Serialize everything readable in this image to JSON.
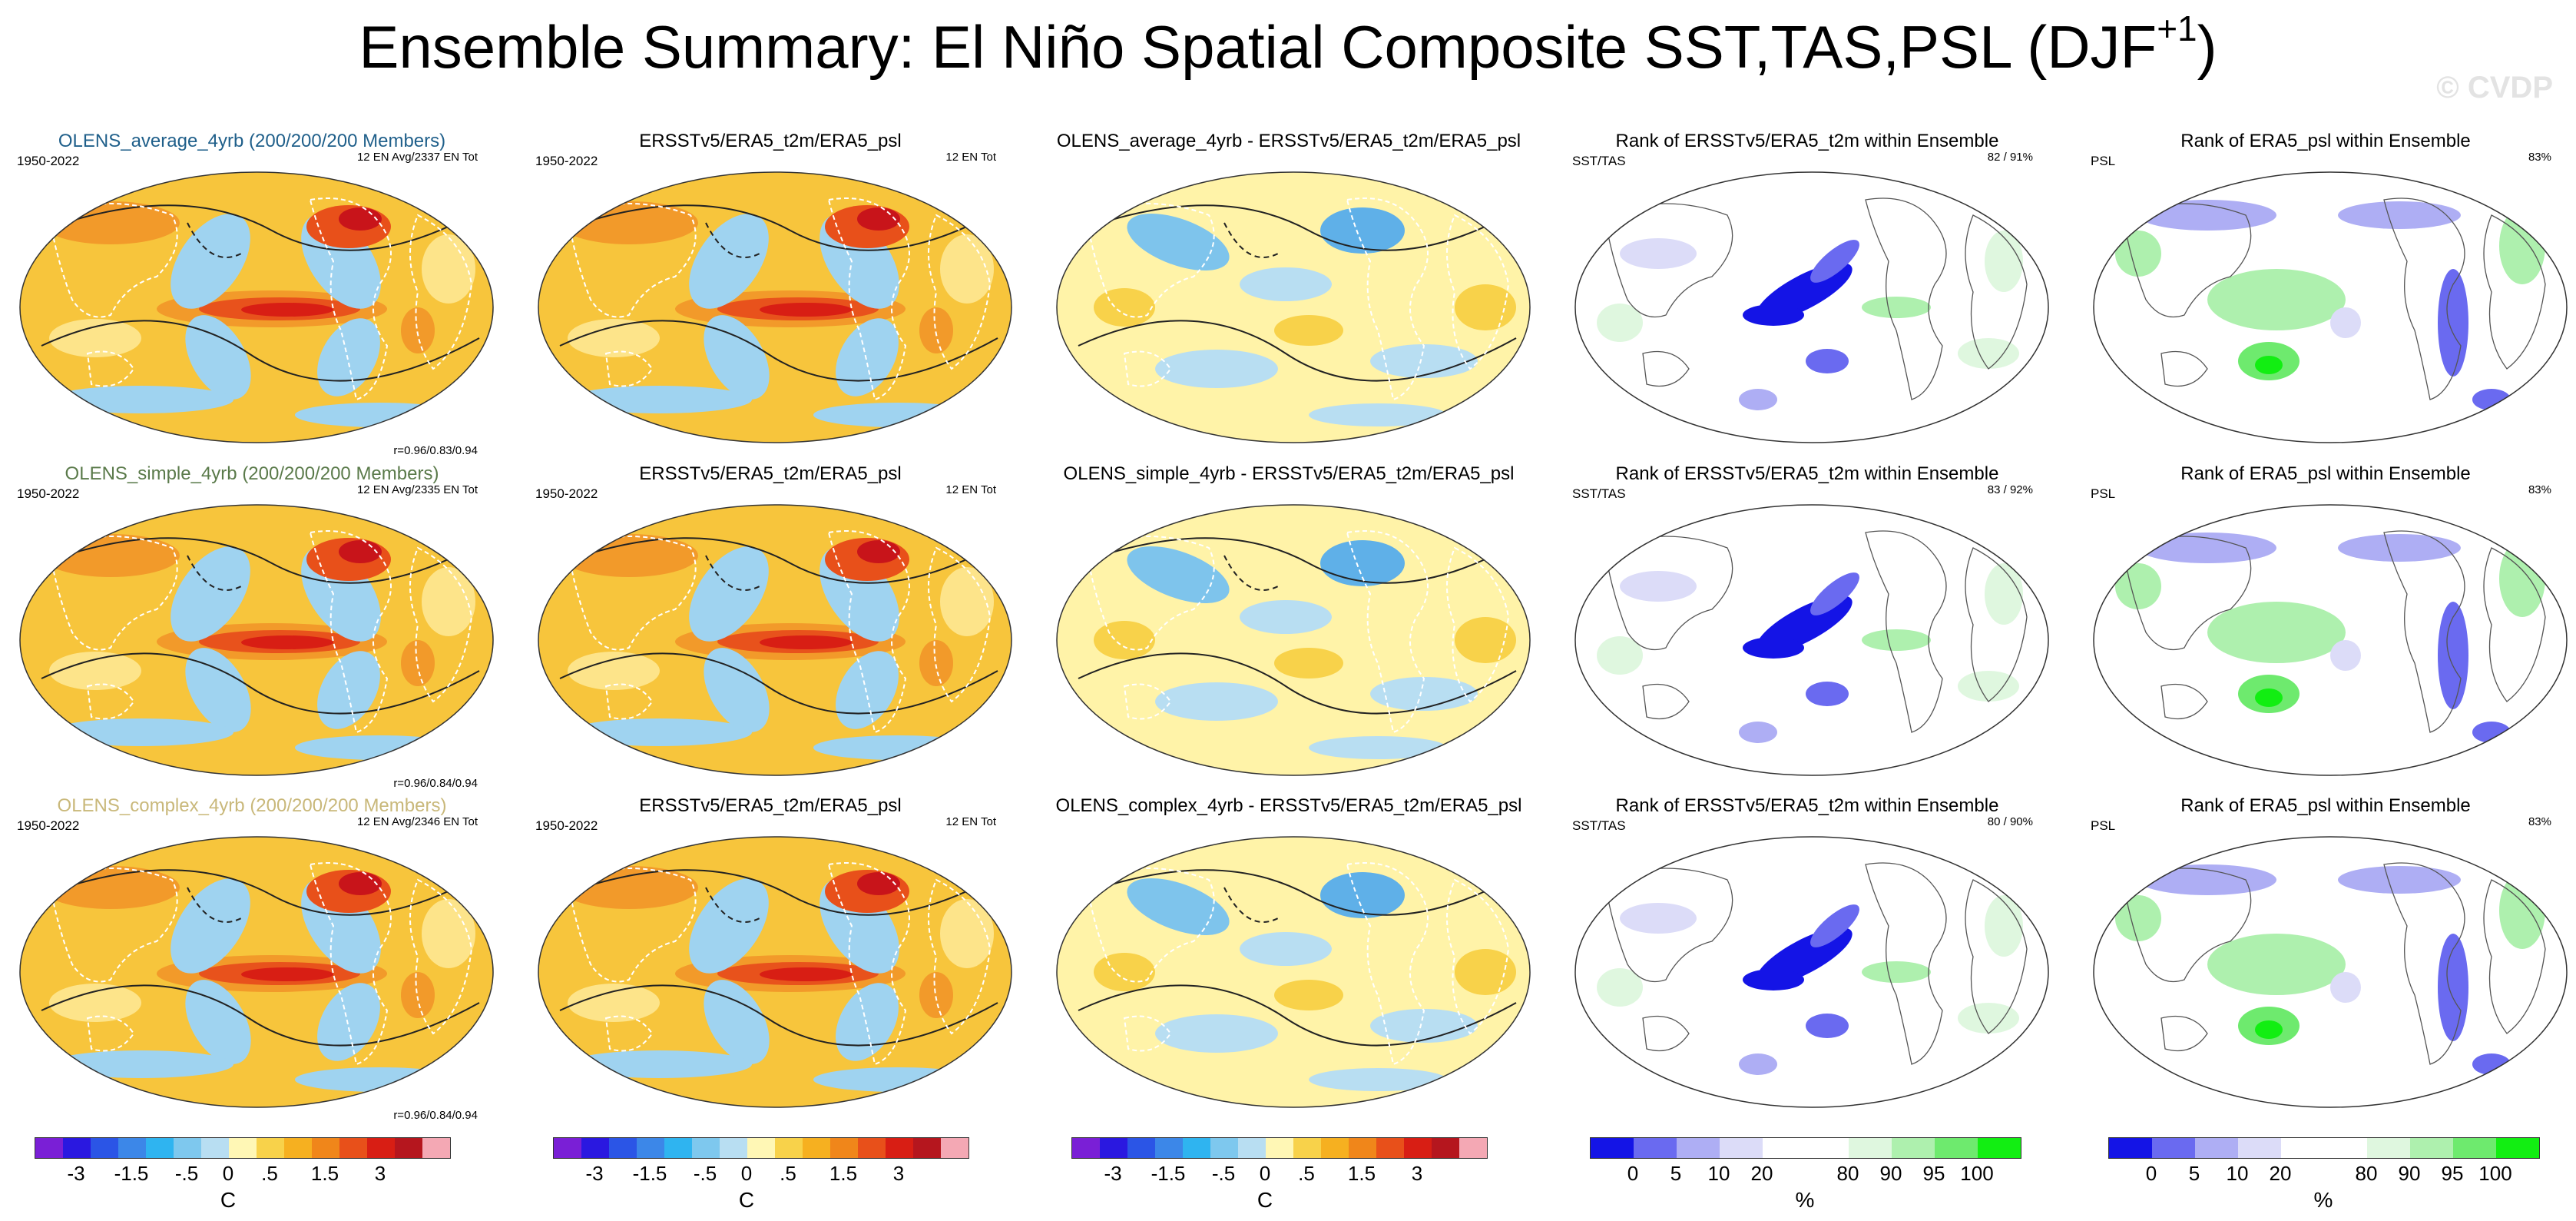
{
  "title": {
    "main": "Ensemble Summary: El Niño Spatial Composite SST,TAS,PSL (DJF",
    "sup": "+1",
    "close": ")"
  },
  "watermark": "© CVDP",
  "rows": [
    {
      "model": {
        "title": "OLENS_average_4yrb (200/200/200 Members)",
        "color": "#1f5f8a",
        "years": "1950-2022",
        "tag": "12 EN Avg/2337 EN Tot",
        "stat": "r=0.96/0.83/0.94"
      },
      "obs": {
        "title": "ERSSTv5/ERA5_t2m/ERA5_psl",
        "years": "1950-2022",
        "tag": "12 EN Tot"
      },
      "diff": {
        "title": "OLENS_average_4yrb - ERSSTv5/ERA5_t2m/ERA5_psl"
      },
      "rank1": {
        "title": "Rank of ERSSTv5/ERA5_t2m within Ensemble",
        "label": "SST/TAS",
        "tag": "82 /  91%"
      },
      "rank2": {
        "title": "Rank of ERA5_psl within Ensemble",
        "label": "PSL",
        "tag": "83%"
      }
    },
    {
      "model": {
        "title": "OLENS_simple_4yrb (200/200/200 Members)",
        "color": "#5a7a4a",
        "years": "1950-2022",
        "tag": "12 EN Avg/2335 EN Tot",
        "stat": "r=0.96/0.84/0.94"
      },
      "obs": {
        "title": "ERSSTv5/ERA5_t2m/ERA5_psl",
        "years": "1950-2022",
        "tag": "12 EN Tot"
      },
      "diff": {
        "title": "OLENS_simple_4yrb - ERSSTv5/ERA5_t2m/ERA5_psl"
      },
      "rank1": {
        "title": "Rank of ERSSTv5/ERA5_t2m within Ensemble",
        "label": "SST/TAS",
        "tag": "83 /  92%"
      },
      "rank2": {
        "title": "Rank of ERA5_psl within Ensemble",
        "label": "PSL",
        "tag": "83%"
      }
    },
    {
      "model": {
        "title": "OLENS_complex_4yrb (200/200/200 Members)",
        "color": "#c9b87a",
        "years": "1950-2022",
        "tag": "12 EN Avg/2346 EN Tot",
        "stat": "r=0.96/0.84/0.94"
      },
      "obs": {
        "title": "ERSSTv5/ERA5_t2m/ERA5_psl",
        "years": "1950-2022",
        "tag": "12 EN Tot"
      },
      "diff": {
        "title": "OLENS_complex_4yrb - ERSSTv5/ERA5_t2m/ERA5_psl"
      },
      "rank1": {
        "title": "Rank of ERSSTv5/ERA5_t2m within Ensemble",
        "label": "SST/TAS",
        "tag": "80 /  90%"
      },
      "rank2": {
        "title": "Rank of ERA5_psl within Ensemble",
        "label": "PSL",
        "tag": "83%"
      }
    }
  ],
  "colorbars": {
    "anomaly": {
      "colors": [
        "#7a1fd6",
        "#2a18e0",
        "#2b55e6",
        "#3c87e8",
        "#2fb4f0",
        "#7ec8ee",
        "#b8def2",
        "#fff7b5",
        "#f8d24a",
        "#f6b020",
        "#f0861a",
        "#e8501a",
        "#d81e14",
        "#b5161e",
        "#f4a8b4"
      ],
      "ticks": [
        "-3",
        "-1.5",
        "-.5",
        "0",
        ".5",
        "1.5",
        "3"
      ],
      "unit": "C"
    },
    "rank": {
      "colors": [
        "#1414e6",
        "#6a6af0",
        "#aeaef4",
        "#dcdcf8",
        "#ffffff",
        "#ffffff",
        "#dff7df",
        "#aef0ae",
        "#6eea6e",
        "#12ee12"
      ],
      "ticks": [
        "0",
        "5",
        "10",
        "20",
        "80",
        "90",
        "95",
        "100"
      ],
      "unit": "%"
    }
  }
}
